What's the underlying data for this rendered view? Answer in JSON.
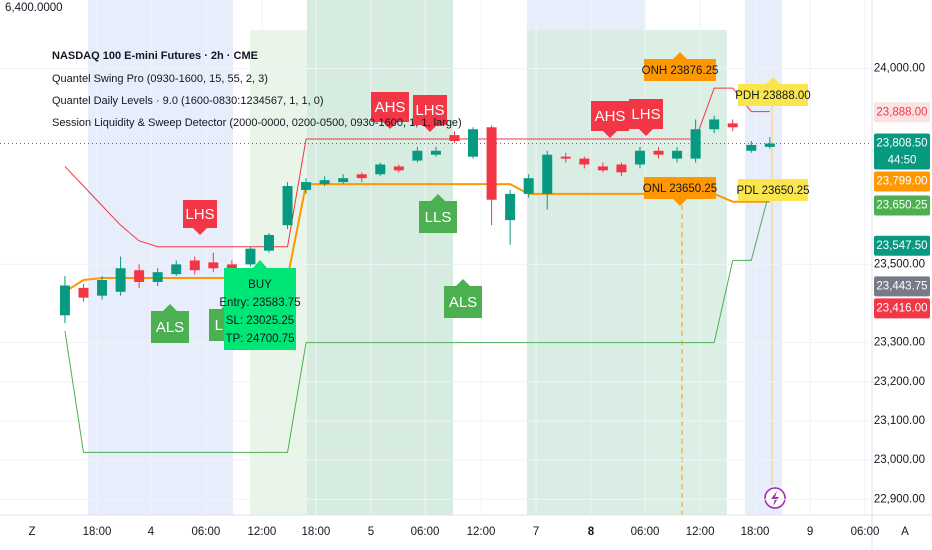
{
  "chart_data": {
    "type": "candlestick",
    "title": "NASDAQ 100 E-mini Futures · 2h · CME",
    "indicators": [
      "Quantel Swing Pro (0930-1600, 15, 55, 2, 3)",
      "Quantel Daily Levels · 9.0 (1600-0830:1234567, 1, 1, 0)",
      "Session Liquidity & Sweep Detector (2000-0000, 0200-0500, 0930-1600, 1, 1, large)"
    ],
    "corner_label": "6,400.0000",
    "bottom_left_label": "Z",
    "bottom_right_label": "A",
    "up_color": "#089981",
    "down_color": "#f23645",
    "xlim": [
      -3.5,
      43.4
    ],
    "ylim": [
      22860,
      24175
    ],
    "xticks": [
      {
        "value": 1.73,
        "label": "18:00"
      },
      {
        "value": 4.64,
        "label": "4"
      },
      {
        "value": 7.6,
        "label": "06:00"
      },
      {
        "value": 10.62,
        "label": "12:00"
      },
      {
        "value": 13.53,
        "label": "18:00"
      },
      {
        "value": 16.5,
        "label": "5"
      },
      {
        "value": 19.41,
        "label": "06:00"
      },
      {
        "value": 22.43,
        "label": "12:00"
      },
      {
        "value": 25.4,
        "label": "7"
      },
      {
        "value": 28.36,
        "label": "8"
      },
      {
        "value": 31.27,
        "label": "06:00"
      },
      {
        "value": 34.24,
        "label": "12:00"
      },
      {
        "value": 37.2,
        "label": "18:00"
      },
      {
        "value": 40.17,
        "label": "9"
      },
      {
        "value": 43.13,
        "label": "06:00"
      }
    ],
    "yticks": [
      {
        "value": 24000,
        "label": "24,000.00"
      },
      {
        "value": 23500,
        "label": "23,500.00"
      },
      {
        "value": 23300,
        "label": "23,300.00"
      },
      {
        "value": 23200,
        "label": "23,200.00"
      },
      {
        "value": 23100,
        "label": "23,100.00"
      },
      {
        "value": 23000,
        "label": "23,000.00"
      },
      {
        "value": 22900,
        "label": "22,900.00"
      }
    ],
    "grid": true,
    "candles": {
      "open": [
        23370,
        23440,
        23420,
        23430,
        23485,
        23455,
        23475,
        23510,
        23505,
        23500,
        23500,
        23535,
        23600,
        23690,
        23705,
        23710,
        23730,
        23730,
        23750,
        23765,
        23780,
        23830,
        23775,
        23850,
        23613,
        23680,
        23680,
        23775,
        23770,
        23750,
        23755,
        23755,
        23790,
        23770,
        23770,
        23845,
        23860,
        23790,
        23800
      ],
      "high": [
        23470,
        23450,
        23470,
        23520,
        23500,
        23490,
        23510,
        23520,
        23530,
        23510,
        23545,
        23580,
        23710,
        23720,
        23725,
        23730,
        23735,
        23760,
        23755,
        23800,
        23800,
        23840,
        23850,
        23855,
        23690,
        23730,
        23790,
        23785,
        23775,
        23760,
        23760,
        23800,
        23800,
        23800,
        23870,
        23880,
        23870,
        23815,
        23825
      ],
      "low": [
        23350,
        23405,
        23410,
        23420,
        23440,
        23445,
        23470,
        23475,
        23480,
        23465,
        23495,
        23530,
        23590,
        23680,
        23700,
        23705,
        23710,
        23725,
        23735,
        23760,
        23775,
        23810,
        23770,
        23600,
        23550,
        23670,
        23640,
        23760,
        23745,
        23735,
        23725,
        23745,
        23770,
        23760,
        23760,
        23835,
        23840,
        23785,
        23795
      ],
      "close": [
        23446,
        23415,
        23460,
        23490,
        23455,
        23480,
        23500,
        23485,
        23490,
        23475,
        23540,
        23575,
        23700,
        23710,
        23715,
        23720,
        23720,
        23755,
        23740,
        23790,
        23790,
        23815,
        23845,
        23665,
        23680,
        23720,
        23780,
        23770,
        23755,
        23740,
        23735,
        23790,
        23780,
        23790,
        23845,
        23870,
        23850,
        23805,
        23808.5
      ]
    },
    "lines": [
      {
        "color": "#f23645",
        "values": [
          23750,
          23700,
          23650,
          23600,
          23560,
          23545,
          23545,
          23545,
          23545,
          23545,
          23545,
          23545,
          23545,
          23820,
          23820,
          23820,
          23820,
          23820,
          23820,
          23820,
          23820,
          23820,
          23820,
          23820,
          23820,
          23820,
          23820,
          23820,
          23820,
          23820,
          23820,
          23820,
          23820,
          23820,
          23820,
          23950,
          23950,
          23890,
          23890
        ]
      },
      {
        "color": "#ff9800",
        "values": [
          23430,
          23460,
          23465,
          23465,
          23465,
          23465,
          23465,
          23465,
          23465,
          23465,
          23465,
          23465,
          23465,
          23705,
          23705,
          23705,
          23705,
          23705,
          23705,
          23705,
          23705,
          23705,
          23705,
          23705,
          23705,
          23680,
          23680,
          23680,
          23680,
          23680,
          23680,
          23680,
          23680,
          23680,
          23680,
          23680,
          23660,
          23660,
          23660
        ]
      },
      {
        "color": "#4caf50",
        "values": [
          23330,
          23020,
          23020,
          23020,
          23020,
          23020,
          23020,
          23020,
          23020,
          23020,
          23020,
          23020,
          23020,
          23300,
          23300,
          23300,
          23300,
          23300,
          23300,
          23300,
          23300,
          23300,
          23300,
          23300,
          23300,
          23300,
          23300,
          23300,
          23300,
          23300,
          23300,
          23300,
          23300,
          23300,
          23300,
          23300,
          23510,
          23510,
          23690
        ]
      }
    ],
    "annotations": [
      {
        "label": "LHS",
        "color": "#f23645"
      },
      {
        "label": "ALS",
        "color": "#4caf50"
      },
      {
        "label": "LLS",
        "color": "#4caf50"
      },
      {
        "label": "AHS",
        "color": "#f23645"
      },
      {
        "label": "LHS",
        "color": "#f23645"
      },
      {
        "label": "LLS",
        "color": "#4caf50"
      },
      {
        "label": "ALS",
        "color": "#4caf50"
      },
      {
        "label": "AHS",
        "color": "#f23645"
      },
      {
        "label": "LHS",
        "color": "#f23645"
      }
    ],
    "levels": [
      {
        "label": "ONH 23876.25",
        "color": "#ff9800"
      },
      {
        "label": "ONL 23650.25",
        "color": "#ff9800"
      },
      {
        "label": "PDH 23888.00",
        "color": "#fbe54d"
      },
      {
        "label": "PDL 23650.25",
        "color": "#fbe54d"
      }
    ],
    "buy_box": {
      "color": "#00e676",
      "lines": [
        "BUY",
        "Entry: 23583.75",
        "SL: 23025.25",
        "TP: 24700.75"
      ]
    },
    "price_tags": [
      {
        "value": 23888,
        "label": "23,888.00",
        "color": "#f23645"
      },
      {
        "value": 23808.5,
        "label": "23,808.50",
        "color": "#089981"
      },
      {
        "value": 23799,
        "label": "23,799.00",
        "color": "#ff9800"
      },
      {
        "value": 23650.25,
        "label": "23,650.25",
        "color": "#4caf50"
      },
      {
        "value": 23547.5,
        "label": "23,547.50",
        "color": "#089981"
      },
      {
        "value": 23443.75,
        "label": "23,443.75",
        "color": "#787b86"
      },
      {
        "value": 23416,
        "label": "23,416.00",
        "color": "#f23645"
      }
    ],
    "countdown": "44:50"
  }
}
